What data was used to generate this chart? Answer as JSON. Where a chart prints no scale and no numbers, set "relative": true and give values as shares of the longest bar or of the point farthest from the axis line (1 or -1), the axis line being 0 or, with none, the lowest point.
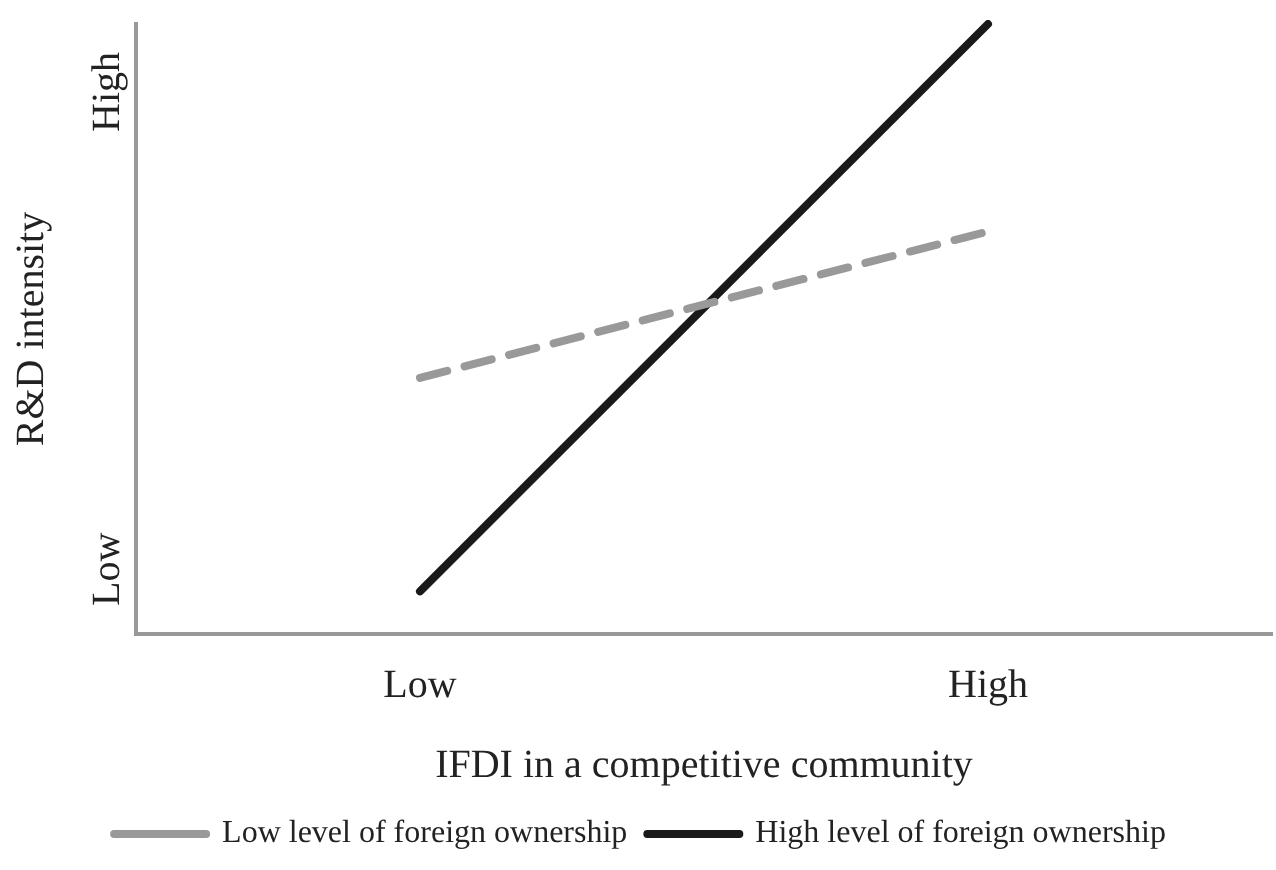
{
  "chart_data": {
    "type": "line",
    "xlabel": "IFDI in a competitive community",
    "ylabel": "R&D intensity",
    "relative": true,
    "categories": [
      "Low",
      "High"
    ],
    "series": [
      {
        "name": "Low level of foreign ownership",
        "color": "#999999",
        "line_style": "dashed",
        "values": [
          0.42,
          0.66
        ]
      },
      {
        "name": "High level of foreign ownership",
        "color": "#1a1a1a",
        "line_style": "solid",
        "values": [
          0.07,
          1
        ]
      }
    ],
    "annotations": [
      "Low",
      "High"
    ],
    "grid": false,
    "legend": "bottom",
    "marker": "none"
  }
}
